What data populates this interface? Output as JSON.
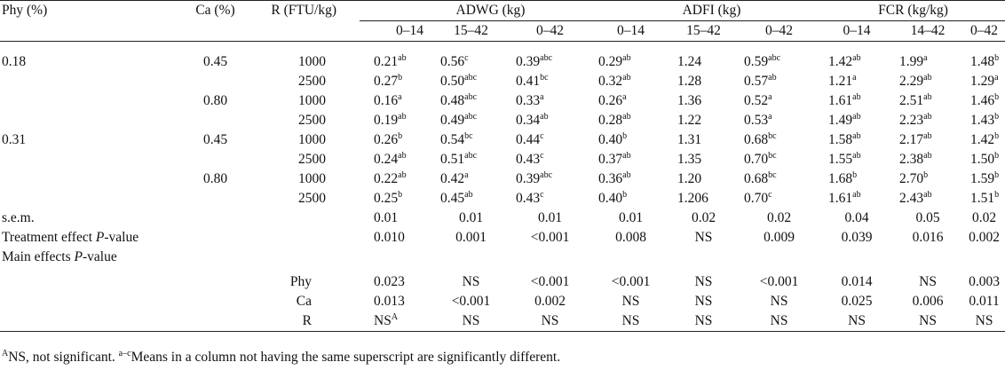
{
  "headers": {
    "phy": "Phy (%)",
    "ca": "Ca (%)",
    "r": "R (FTU/kg)",
    "groups": [
      "ADWG (kg)",
      "ADFI (kg)",
      "FCR (kg/kg)"
    ],
    "subcols": [
      "0–14",
      "15–42",
      "0–42",
      "0–14",
      "15–42",
      "0–42",
      "0–14",
      "14–42",
      "0–42"
    ]
  },
  "rows": [
    {
      "phy": "0.18",
      "ca": "0.45",
      "r": "1000",
      "cells": [
        [
          "0.21",
          "ab"
        ],
        [
          "0.56",
          "c"
        ],
        [
          "0.39",
          "abc"
        ],
        [
          "0.29",
          "ab"
        ],
        [
          "1.24",
          ""
        ],
        [
          "0.59",
          "abc"
        ],
        [
          "1.42",
          "ab"
        ],
        [
          "1.99",
          "a"
        ],
        [
          "1.48",
          "b"
        ]
      ]
    },
    {
      "phy": "",
      "ca": "",
      "r": "2500",
      "cells": [
        [
          "0.27",
          "b"
        ],
        [
          "0.50",
          "abc"
        ],
        [
          "0.41",
          "bc"
        ],
        [
          "0.32",
          "ab"
        ],
        [
          "1.28",
          ""
        ],
        [
          "0.57",
          "ab"
        ],
        [
          "1.21",
          "a"
        ],
        [
          "2.29",
          "ab"
        ],
        [
          "1.29",
          "a"
        ]
      ]
    },
    {
      "phy": "",
      "ca": "0.80",
      "r": "1000",
      "cells": [
        [
          "0.16",
          "a"
        ],
        [
          "0.48",
          "abc"
        ],
        [
          "0.33",
          "a"
        ],
        [
          "0.26",
          "a"
        ],
        [
          "1.36",
          ""
        ],
        [
          "0.52",
          "a"
        ],
        [
          "1.61",
          "ab"
        ],
        [
          "2.51",
          "ab"
        ],
        [
          "1.46",
          "b"
        ]
      ]
    },
    {
      "phy": "",
      "ca": "",
      "r": "2500",
      "cells": [
        [
          "0.19",
          "ab"
        ],
        [
          "0.49",
          "abc"
        ],
        [
          "0.34",
          "ab"
        ],
        [
          "0.28",
          "ab"
        ],
        [
          "1.22",
          ""
        ],
        [
          "0.53",
          "a"
        ],
        [
          "1.49",
          "ab"
        ],
        [
          "2.23",
          "ab"
        ],
        [
          "1.43",
          "b"
        ]
      ]
    },
    {
      "phy": "0.31",
      "ca": "0.45",
      "r": "1000",
      "cells": [
        [
          "0.26",
          "b"
        ],
        [
          "0.54",
          "bc"
        ],
        [
          "0.44",
          "c"
        ],
        [
          "0.40",
          "b"
        ],
        [
          "1.31",
          ""
        ],
        [
          "0.68",
          "bc"
        ],
        [
          "1.58",
          "ab"
        ],
        [
          "2.17",
          "ab"
        ],
        [
          "1.42",
          "b"
        ]
      ]
    },
    {
      "phy": "",
      "ca": "",
      "r": "2500",
      "cells": [
        [
          "0.24",
          "ab"
        ],
        [
          "0.51",
          "abc"
        ],
        [
          "0.43",
          "c"
        ],
        [
          "0.37",
          "ab"
        ],
        [
          "1.35",
          ""
        ],
        [
          "0.70",
          "bc"
        ],
        [
          "1.55",
          "ab"
        ],
        [
          "2.38",
          "ab"
        ],
        [
          "1.50",
          "b"
        ]
      ]
    },
    {
      "phy": "",
      "ca": "0.80",
      "r": "1000",
      "cells": [
        [
          "0.22",
          "ab"
        ],
        [
          "0.42",
          "a"
        ],
        [
          "0.39",
          "abc"
        ],
        [
          "0.36",
          "ab"
        ],
        [
          "1.20",
          ""
        ],
        [
          "0.68",
          "bc"
        ],
        [
          "1.68",
          "b"
        ],
        [
          "2.70",
          "b"
        ],
        [
          "1.59",
          "b"
        ]
      ]
    },
    {
      "phy": "",
      "ca": "",
      "r": "2500",
      "cells": [
        [
          "0.25",
          "b"
        ],
        [
          "0.45",
          "ab"
        ],
        [
          "0.43",
          "c"
        ],
        [
          "0.40",
          "b"
        ],
        [
          "1.206",
          ""
        ],
        [
          "0.70",
          "c"
        ],
        [
          "1.61",
          "ab"
        ],
        [
          "2.43",
          "ab"
        ],
        [
          "1.51",
          "b"
        ]
      ]
    }
  ],
  "sem": {
    "label": "s.e.m.",
    "values": [
      "0.01",
      "0.01",
      "0.01",
      "0.01",
      "0.02",
      "0.02",
      "0.04",
      "0.05",
      "0.02"
    ]
  },
  "treatment": {
    "label_pre": "Treatment effect ",
    "label_italic": "P",
    "label_post": "-value",
    "values": [
      "0.010",
      "0.001",
      "<0.001",
      "0.008",
      "NS",
      "0.009",
      "0.039",
      "0.016",
      "0.002"
    ]
  },
  "main": {
    "label_pre": "Main effects ",
    "label_italic": "P",
    "label_post": "-value"
  },
  "main_rows": [
    {
      "factor": "Phy",
      "values": [
        [
          "0.023",
          ""
        ],
        [
          "NS",
          ""
        ],
        [
          "<0.001",
          ""
        ],
        [
          "<0.001",
          ""
        ],
        [
          "NS",
          ""
        ],
        [
          "<0.001",
          ""
        ],
        [
          "0.014",
          ""
        ],
        [
          "NS",
          ""
        ],
        [
          "0.003",
          ""
        ]
      ]
    },
    {
      "factor": "Ca",
      "values": [
        [
          "0.013",
          ""
        ],
        [
          "<0.001",
          ""
        ],
        [
          "0.002",
          ""
        ],
        [
          "NS",
          ""
        ],
        [
          "NS",
          ""
        ],
        [
          "NS",
          ""
        ],
        [
          "0.025",
          ""
        ],
        [
          "0.006",
          ""
        ],
        [
          "0.011",
          ""
        ]
      ]
    },
    {
      "factor": "R",
      "values": [
        [
          "NS",
          "A"
        ],
        [
          "NS",
          ""
        ],
        [
          "NS",
          ""
        ],
        [
          "NS",
          ""
        ],
        [
          "NS",
          ""
        ],
        [
          "NS",
          ""
        ],
        [
          "NS",
          ""
        ],
        [
          "NS",
          ""
        ],
        [
          "NS",
          ""
        ]
      ]
    }
  ],
  "footnote": {
    "sup1": "A",
    "text1": "NS, not significant. ",
    "sup2": "a–c",
    "text2": "Means in a column not having the same superscript are significantly different."
  }
}
